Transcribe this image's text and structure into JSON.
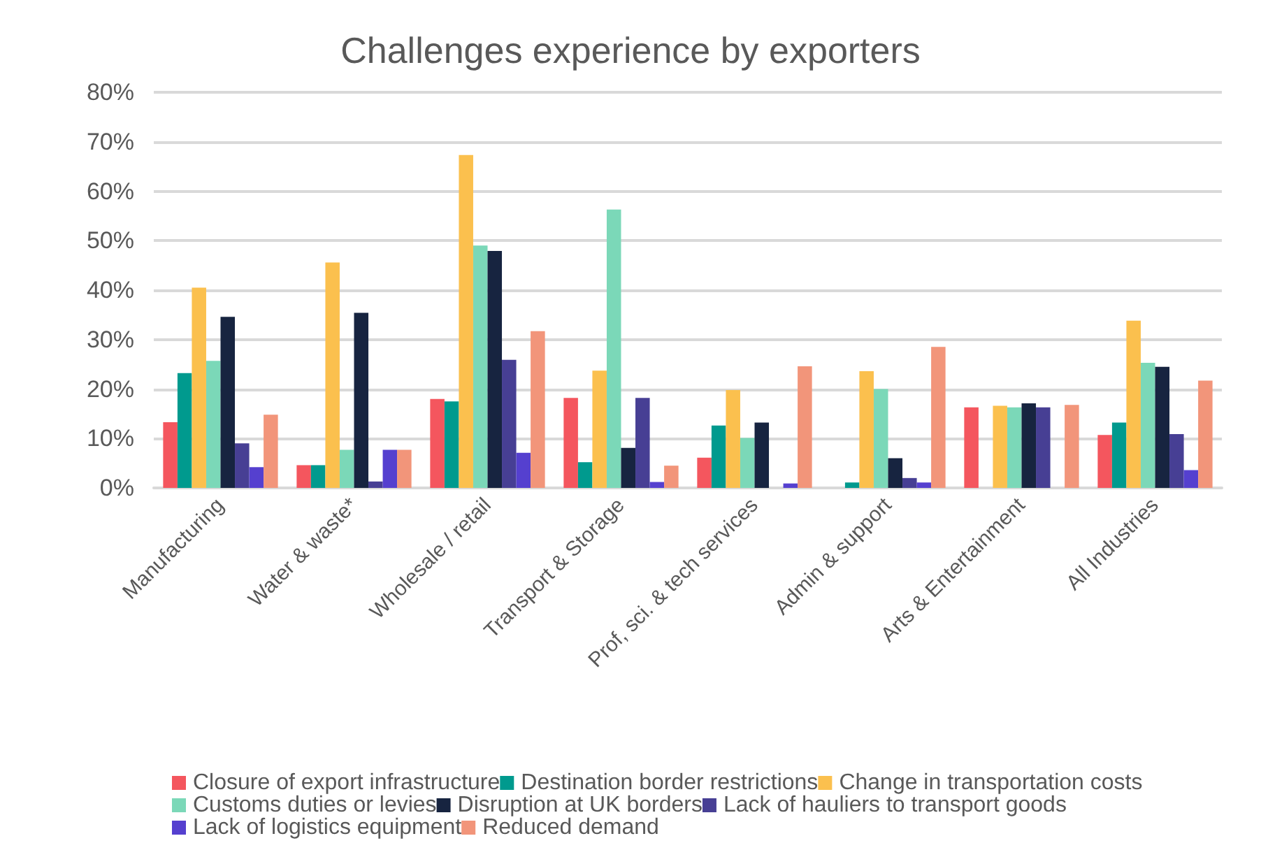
{
  "chart_data": {
    "type": "bar",
    "title": "Challenges experience by exporters",
    "categories": [
      "Manufacturing",
      "Water & waste*",
      "Wholesale / retail",
      "Transport & Storage",
      "Prof, sci. & tech services",
      "Admin & support",
      "Arts & Entertainment",
      "All Industries"
    ],
    "series": [
      {
        "name": "Closure of export infrastructure",
        "color": "#f4565e",
        "values": [
          13.3,
          4.6,
          18,
          18.2,
          6.1,
          null,
          16.3,
          10.7
        ]
      },
      {
        "name": "Destination border restrictions",
        "color": "#009a8e",
        "values": [
          23.2,
          4.6,
          17.5,
          5.2,
          12.6,
          1.1,
          null,
          13.2
        ]
      },
      {
        "name": "Change in transportation costs",
        "color": "#fbc04e",
        "values": [
          40.5,
          45.6,
          67.3,
          23.7,
          19.8,
          23.6,
          16.6,
          33.8
        ]
      },
      {
        "name": "Customs duties or levies",
        "color": "#7bd8b8",
        "values": [
          25.7,
          7.7,
          49,
          56.3,
          10.1,
          20,
          16.3,
          25.3
        ]
      },
      {
        "name": "Disruption at UK borders",
        "color": "#172440",
        "values": [
          34.6,
          35.4,
          47.9,
          8.1,
          13.2,
          6,
          17.1,
          24.5
        ]
      },
      {
        "name": "Lack of hauliers to transport goods",
        "color": "#473f94",
        "values": [
          9,
          1.3,
          25.9,
          18.2,
          null,
          2,
          16.3,
          10.9
        ]
      },
      {
        "name": "Lack of logistics equipment",
        "color": "#5540cf",
        "values": [
          4.2,
          7.7,
          7.1,
          1.2,
          0.9,
          1.1,
          null,
          3.6
        ]
      },
      {
        "name": "Reduced demand",
        "color": "#f2957a",
        "values": [
          14.8,
          7.7,
          31.7,
          4.5,
          24.6,
          28.5,
          16.8,
          21.7
        ]
      }
    ],
    "ylim": [
      0,
      80
    ],
    "yticks": [
      {
        "value": 0,
        "label": "0%"
      },
      {
        "value": 10,
        "label": "10%"
      },
      {
        "value": 20,
        "label": "20%"
      },
      {
        "value": 30,
        "label": "30%"
      },
      {
        "value": 40,
        "label": "40%"
      },
      {
        "value": 50,
        "label": "50%"
      },
      {
        "value": 60,
        "label": "60%"
      },
      {
        "value": 70,
        "label": "70%"
      },
      {
        "value": 80,
        "label": "80%"
      }
    ],
    "grid": "y",
    "legend": "bottom"
  }
}
